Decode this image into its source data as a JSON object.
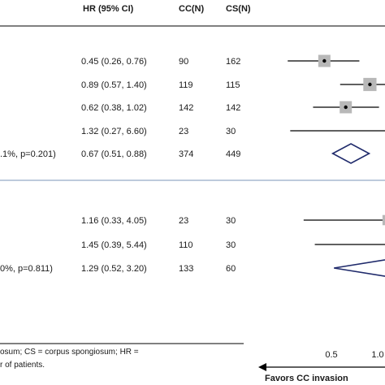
{
  "chart_data": {
    "type": "forest",
    "columns": {
      "hr": "HR (95% CI)",
      "cc": "CC(N)",
      "cs": "CS(N)"
    },
    "groups": [
      {
        "rows": [
          {
            "hr_text": "0.45 (0.26, 0.76)",
            "cc": "90",
            "cs": "162",
            "hr": 0.45,
            "lo": 0.26,
            "hi": 0.76,
            "weight": 1.0
          },
          {
            "hr_text": "0.89 (0.57, 1.40)",
            "cc": "119",
            "cs": "115",
            "hr": 0.89,
            "lo": 0.57,
            "hi": 1.4,
            "weight": 1.2
          },
          {
            "hr_text": "0.62 (0.38, 1.02)",
            "cc": "142",
            "cs": "142",
            "hr": 0.62,
            "lo": 0.38,
            "hi": 1.02,
            "weight": 1.0
          },
          {
            "hr_text": "1.32 (0.27, 6.60)",
            "cc": "23",
            "cs": "30",
            "hr": 1.32,
            "lo": 0.27,
            "hi": 6.6,
            "weight": 0.3
          }
        ],
        "summary": {
          "label": ".1%, p=0.201)",
          "hr_text": "0.67 (0.51, 0.88)",
          "cc": "374",
          "cs": "449",
          "hr": 0.67,
          "lo": 0.51,
          "hi": 0.88
        }
      },
      {
        "rows": [
          {
            "hr_text": "1.16 (0.33, 4.05)",
            "cc": "23",
            "cs": "30",
            "hr": 1.16,
            "lo": 0.33,
            "hi": 4.05,
            "weight": 0.6
          },
          {
            "hr_text": "1.45 (0.39, 5.44)",
            "cc": "110",
            "cs": "30",
            "hr": 1.45,
            "lo": 0.39,
            "hi": 5.44,
            "weight": 0.6
          }
        ],
        "summary": {
          "label": "0%, p=0.811)",
          "hr_text": "1.29 (0.52, 3.20)",
          "cc": "133",
          "cs": "60",
          "hr": 1.29,
          "lo": 0.52,
          "hi": 3.2
        }
      }
    ],
    "x_scale": "log",
    "x_ticks": [
      {
        "value": 0.5,
        "label": "0.5"
      },
      {
        "value": 1.0,
        "label": "1.0"
      }
    ],
    "xlim": [
      0.19,
      1.05
    ],
    "favors_label": "Favors CC invasion",
    "footnote": [
      "osum;  CS = corpus spongiosum; HR =",
      "r of patients."
    ],
    "colors": {
      "marker_box": "#b8b8b8",
      "diamond_stroke": "#1f2a6b",
      "divider": "#7b96b8",
      "line": "#000000"
    }
  }
}
